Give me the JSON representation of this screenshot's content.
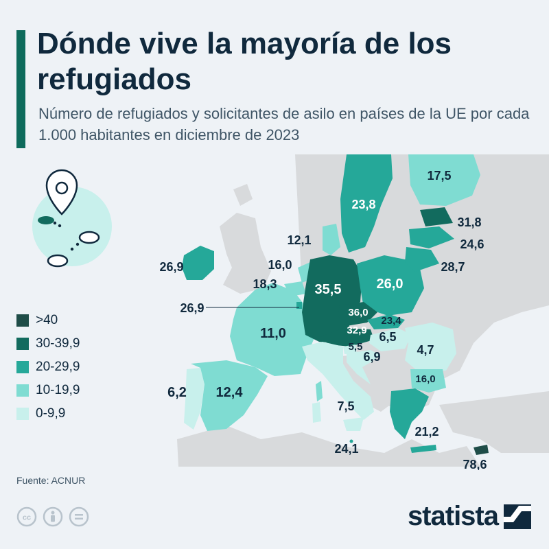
{
  "header": {
    "title": "Dónde vive la mayoría de los refugiados",
    "subtitle": "Número de refugiados y solicitantes de asilo en países de la UE por cada 1.000 habitantes en diciembre de 2023"
  },
  "colors": {
    "band_40_plus": "#1f4d48",
    "band_30": "#126b5e",
    "band_20": "#25a899",
    "band_10": "#7fdcd2",
    "band_0": "#c8f0ec",
    "land_other": "#d8dadc",
    "sea": "#eef2f6",
    "accent": "#0e6b5c",
    "text_dark": "#10293d"
  },
  "legend": [
    {
      "label": ">40",
      "color": "#1f4d48"
    },
    {
      "label": "30-39,9",
      "color": "#126b5e"
    },
    {
      "label": "20-29,9",
      "color": "#25a899"
    },
    {
      "label": "10-19,9",
      "color": "#7fdcd2"
    },
    {
      "label": "0-9,9",
      "color": "#c8f0ec"
    }
  ],
  "regions": [
    {
      "name": "Finlandia",
      "label": "17,5",
      "band": "10-19,9"
    },
    {
      "name": "Suecia",
      "label": "23,8",
      "band": "20-29,9"
    },
    {
      "name": "Estonia",
      "label": "31,8",
      "band": "30-39,9"
    },
    {
      "name": "Letonia",
      "label": "24,6",
      "band": "20-29,9"
    },
    {
      "name": "Lituania",
      "label": "28,7",
      "band": "20-29,9"
    },
    {
      "name": "Dinamarca",
      "label": "12,1",
      "band": "10-19,9"
    },
    {
      "name": "Países Bajos",
      "label": "16,0",
      "band": "10-19,9"
    },
    {
      "name": "Bélgica",
      "label": "18,3",
      "band": "10-19,9"
    },
    {
      "name": "Luxemburgo",
      "label": "26,9",
      "band": "20-29,9"
    },
    {
      "name": "Irlanda",
      "label": "26,9",
      "band": "20-29,9"
    },
    {
      "name": "Alemania",
      "label": "35,5",
      "band": "30-39,9"
    },
    {
      "name": "Polonia",
      "label": "26,0",
      "band": "20-29,9"
    },
    {
      "name": "Chequia",
      "label": "36,0",
      "band": "30-39,9"
    },
    {
      "name": "Eslovaquia",
      "label": "23,4",
      "band": "20-29,9"
    },
    {
      "name": "Austria",
      "label": "32,9",
      "band": "30-39,9"
    },
    {
      "name": "Hungría",
      "label": "6,5",
      "band": "0-9,9"
    },
    {
      "name": "Eslovenia",
      "label": "5,5",
      "band": "0-9,9"
    },
    {
      "name": "Croacia",
      "label": "6,9",
      "band": "0-9,9"
    },
    {
      "name": "Rumanía",
      "label": "4,7",
      "band": "0-9,9"
    },
    {
      "name": "Bulgaria",
      "label": "16,0",
      "band": "10-19,9"
    },
    {
      "name": "Francia",
      "label": "11,0",
      "band": "10-19,9"
    },
    {
      "name": "España",
      "label": "12,4",
      "band": "10-19,9"
    },
    {
      "name": "Portugal",
      "label": "6,2",
      "band": "0-9,9"
    },
    {
      "name": "Italia",
      "label": "7,5",
      "band": "0-9,9"
    },
    {
      "name": "Grecia",
      "label": "21,2",
      "band": "20-29,9"
    },
    {
      "name": "Malta",
      "label": "24,1",
      "band": "20-29,9"
    },
    {
      "name": "Chipre",
      "label": "78,6",
      "band": ">40"
    }
  ],
  "source": "Fuente: ACNUR",
  "brand": "statista",
  "icons": {
    "cc": "cc-icon",
    "by": "attribution-icon",
    "nd": "no-derivatives-icon",
    "pin": "map-pin-icon"
  }
}
